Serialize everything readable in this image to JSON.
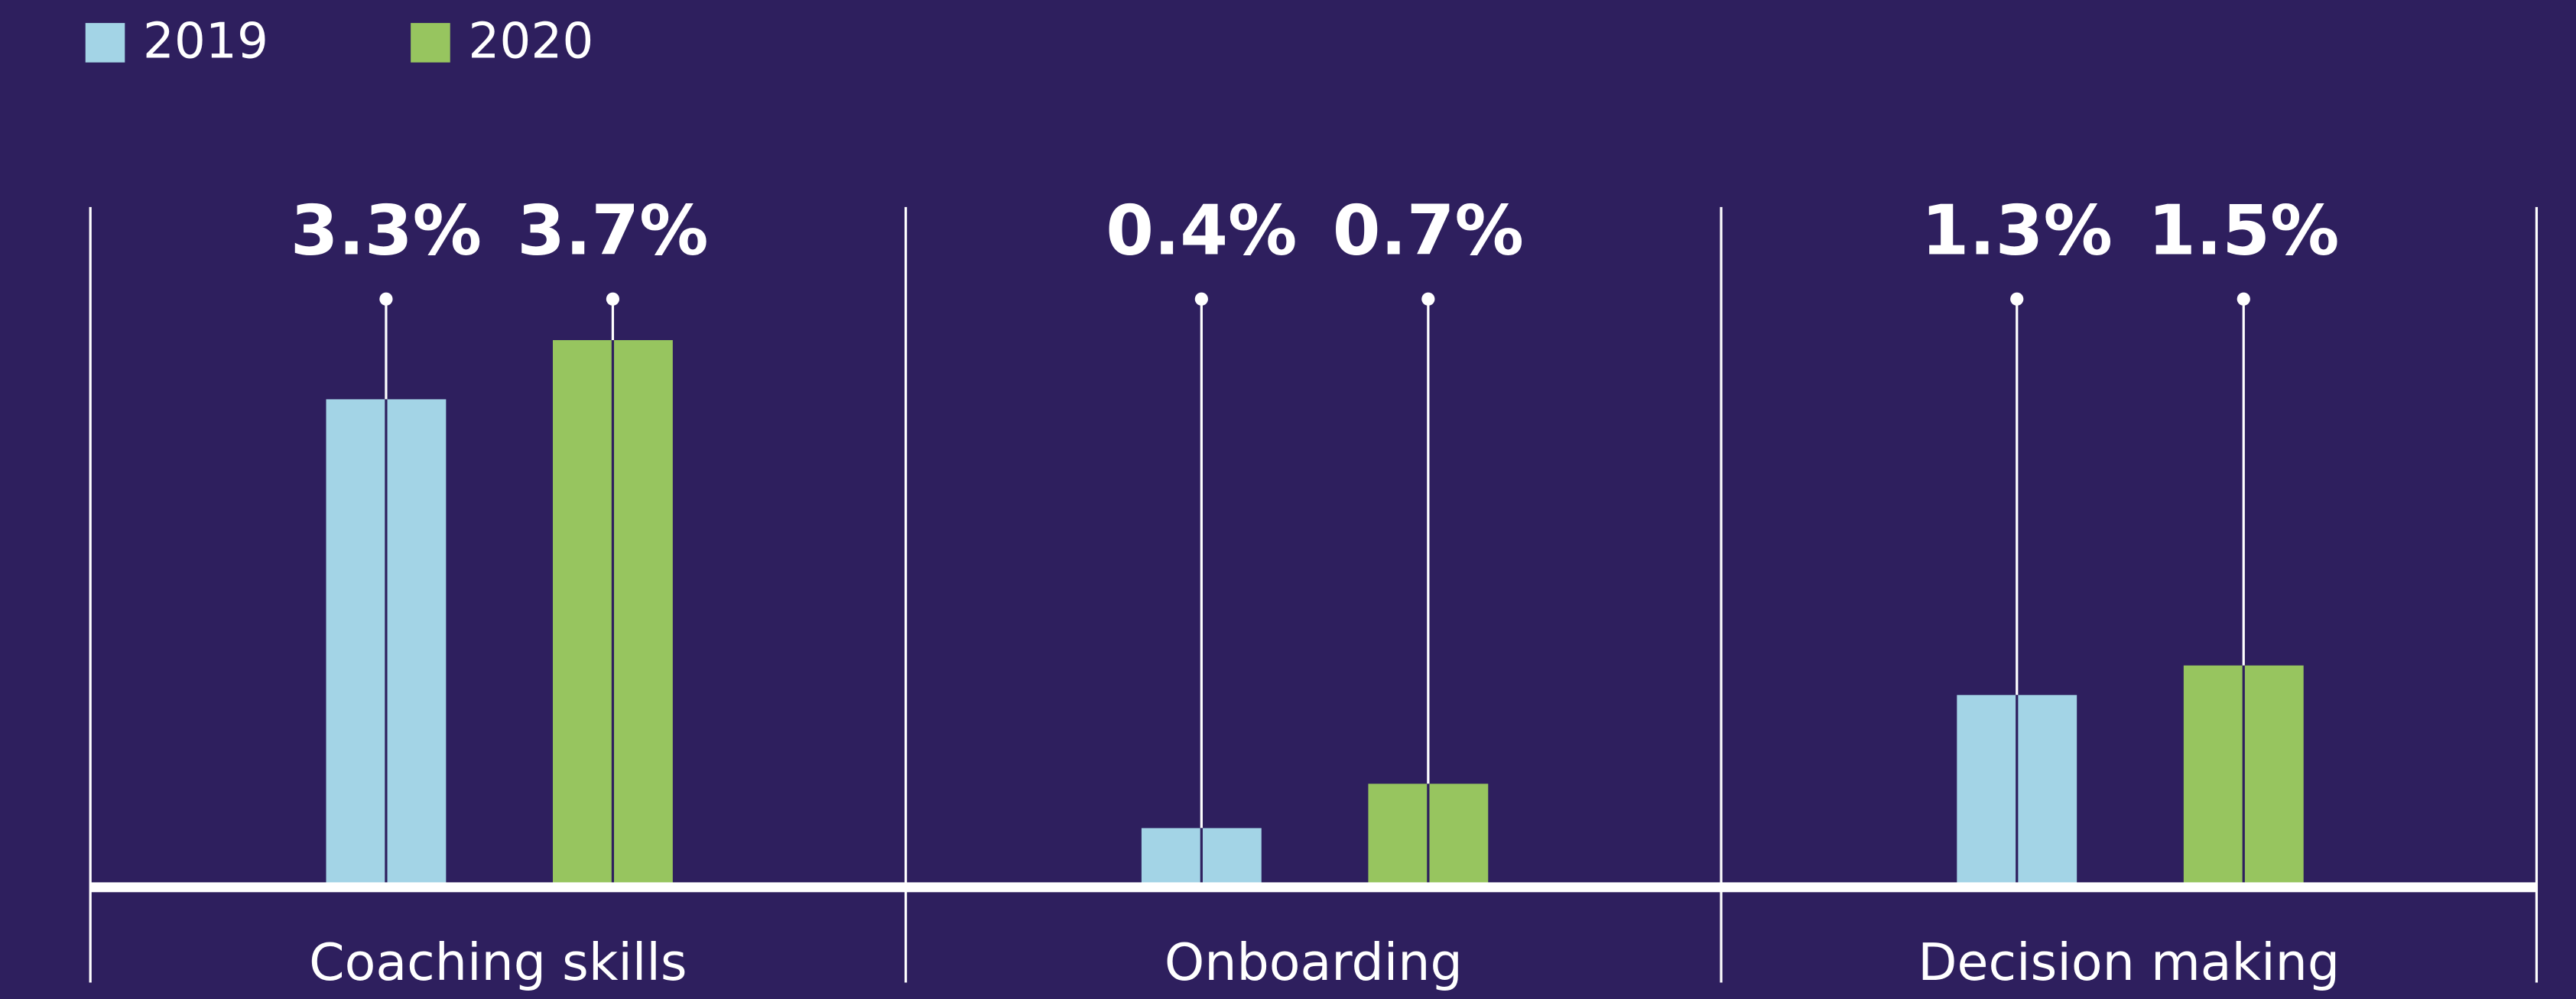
{
  "chart_data": {
    "type": "bar",
    "categories": [
      "Coaching skills",
      "Onboarding",
      "Decision making"
    ],
    "series": [
      {
        "name": "2019",
        "color": "#a3d4e6",
        "values": [
          3.3,
          0.4,
          1.3
        ],
        "value_labels": [
          "3.3%",
          "0.4%",
          "1.3%"
        ]
      },
      {
        "name": "2020",
        "color": "#97c55f",
        "values": [
          3.7,
          0.7,
          1.5
        ],
        "value_labels": [
          "3.7%",
          "0.7%",
          "1.5%"
        ]
      }
    ],
    "ylim": [
      0,
      4.6
    ],
    "legend": "top-left"
  }
}
